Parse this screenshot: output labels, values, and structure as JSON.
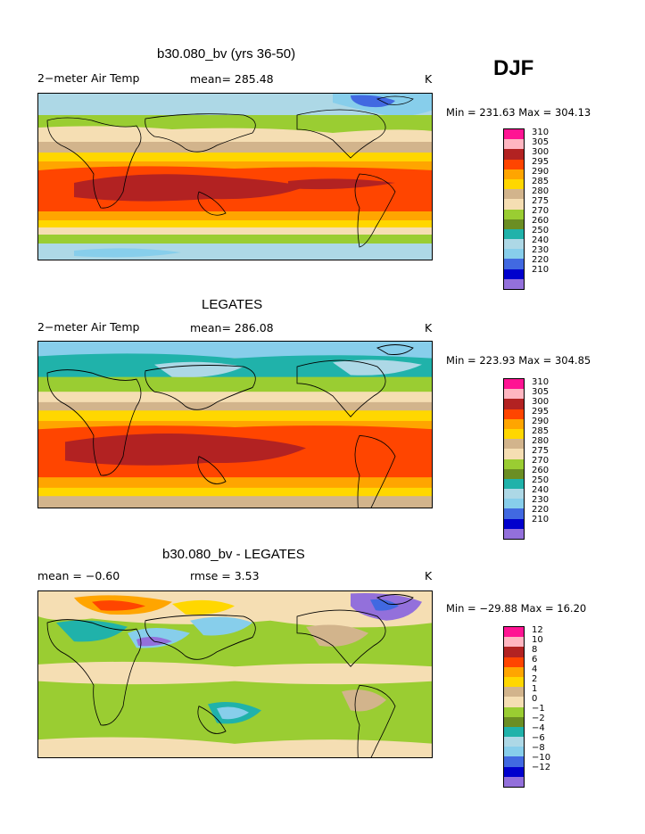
{
  "season": "DJF",
  "palette_abs": [
    "#ff1493",
    "#ffb6c1",
    "#b22222",
    "#ff4500",
    "#ffa500",
    "#ffd700",
    "#d2b48c",
    "#f5deb3",
    "#9acd32",
    "#6b8e23",
    "#20b2aa",
    "#add8e6",
    "#87ceeb",
    "#4169e1",
    "#0000cd",
    "#9370db"
  ],
  "palette_diff": [
    "#ff1493",
    "#ffb6c1",
    "#b22222",
    "#ff4500",
    "#ffa500",
    "#ffd700",
    "#d2b48c",
    "#f5deb3",
    "#9acd32",
    "#6b8e23",
    "#20b2aa",
    "#add8e6",
    "#87ceeb",
    "#4169e1",
    "#0000cd",
    "#9370db"
  ],
  "panels": [
    {
      "title": "b30.080_bv (yrs 36-50)",
      "left_label": "2−meter Air Temp",
      "mid_label": "mean= 285.48",
      "unit": "K",
      "minmax": "Min = 231.63 Max = 304.13",
      "colorbar_labels": [
        "310",
        "305",
        "300",
        "295",
        "290",
        "285",
        "280",
        "275",
        "270",
        "260",
        "250",
        "240",
        "230",
        "220",
        "210"
      ]
    },
    {
      "title": "LEGATES",
      "left_label": "2−meter Air Temp",
      "mid_label": "mean= 286.08",
      "unit": "K",
      "minmax": "Min = 223.93 Max = 304.85",
      "colorbar_labels": [
        "310",
        "305",
        "300",
        "295",
        "290",
        "285",
        "280",
        "275",
        "270",
        "260",
        "250",
        "240",
        "230",
        "220",
        "210"
      ]
    },
    {
      "title": "b30.080_bv - LEGATES",
      "left_label": "mean =   −0.60",
      "mid_label": "rmse =    3.53",
      "unit": "K",
      "minmax": "Min = −29.88 Max =   16.20",
      "colorbar_labels": [
        "12",
        "10",
        "8",
        "6",
        "4",
        "2",
        "1",
        "0",
        "−1",
        "−2",
        "−4",
        "−6",
        "−8",
        "−10",
        "−12"
      ]
    }
  ]
}
